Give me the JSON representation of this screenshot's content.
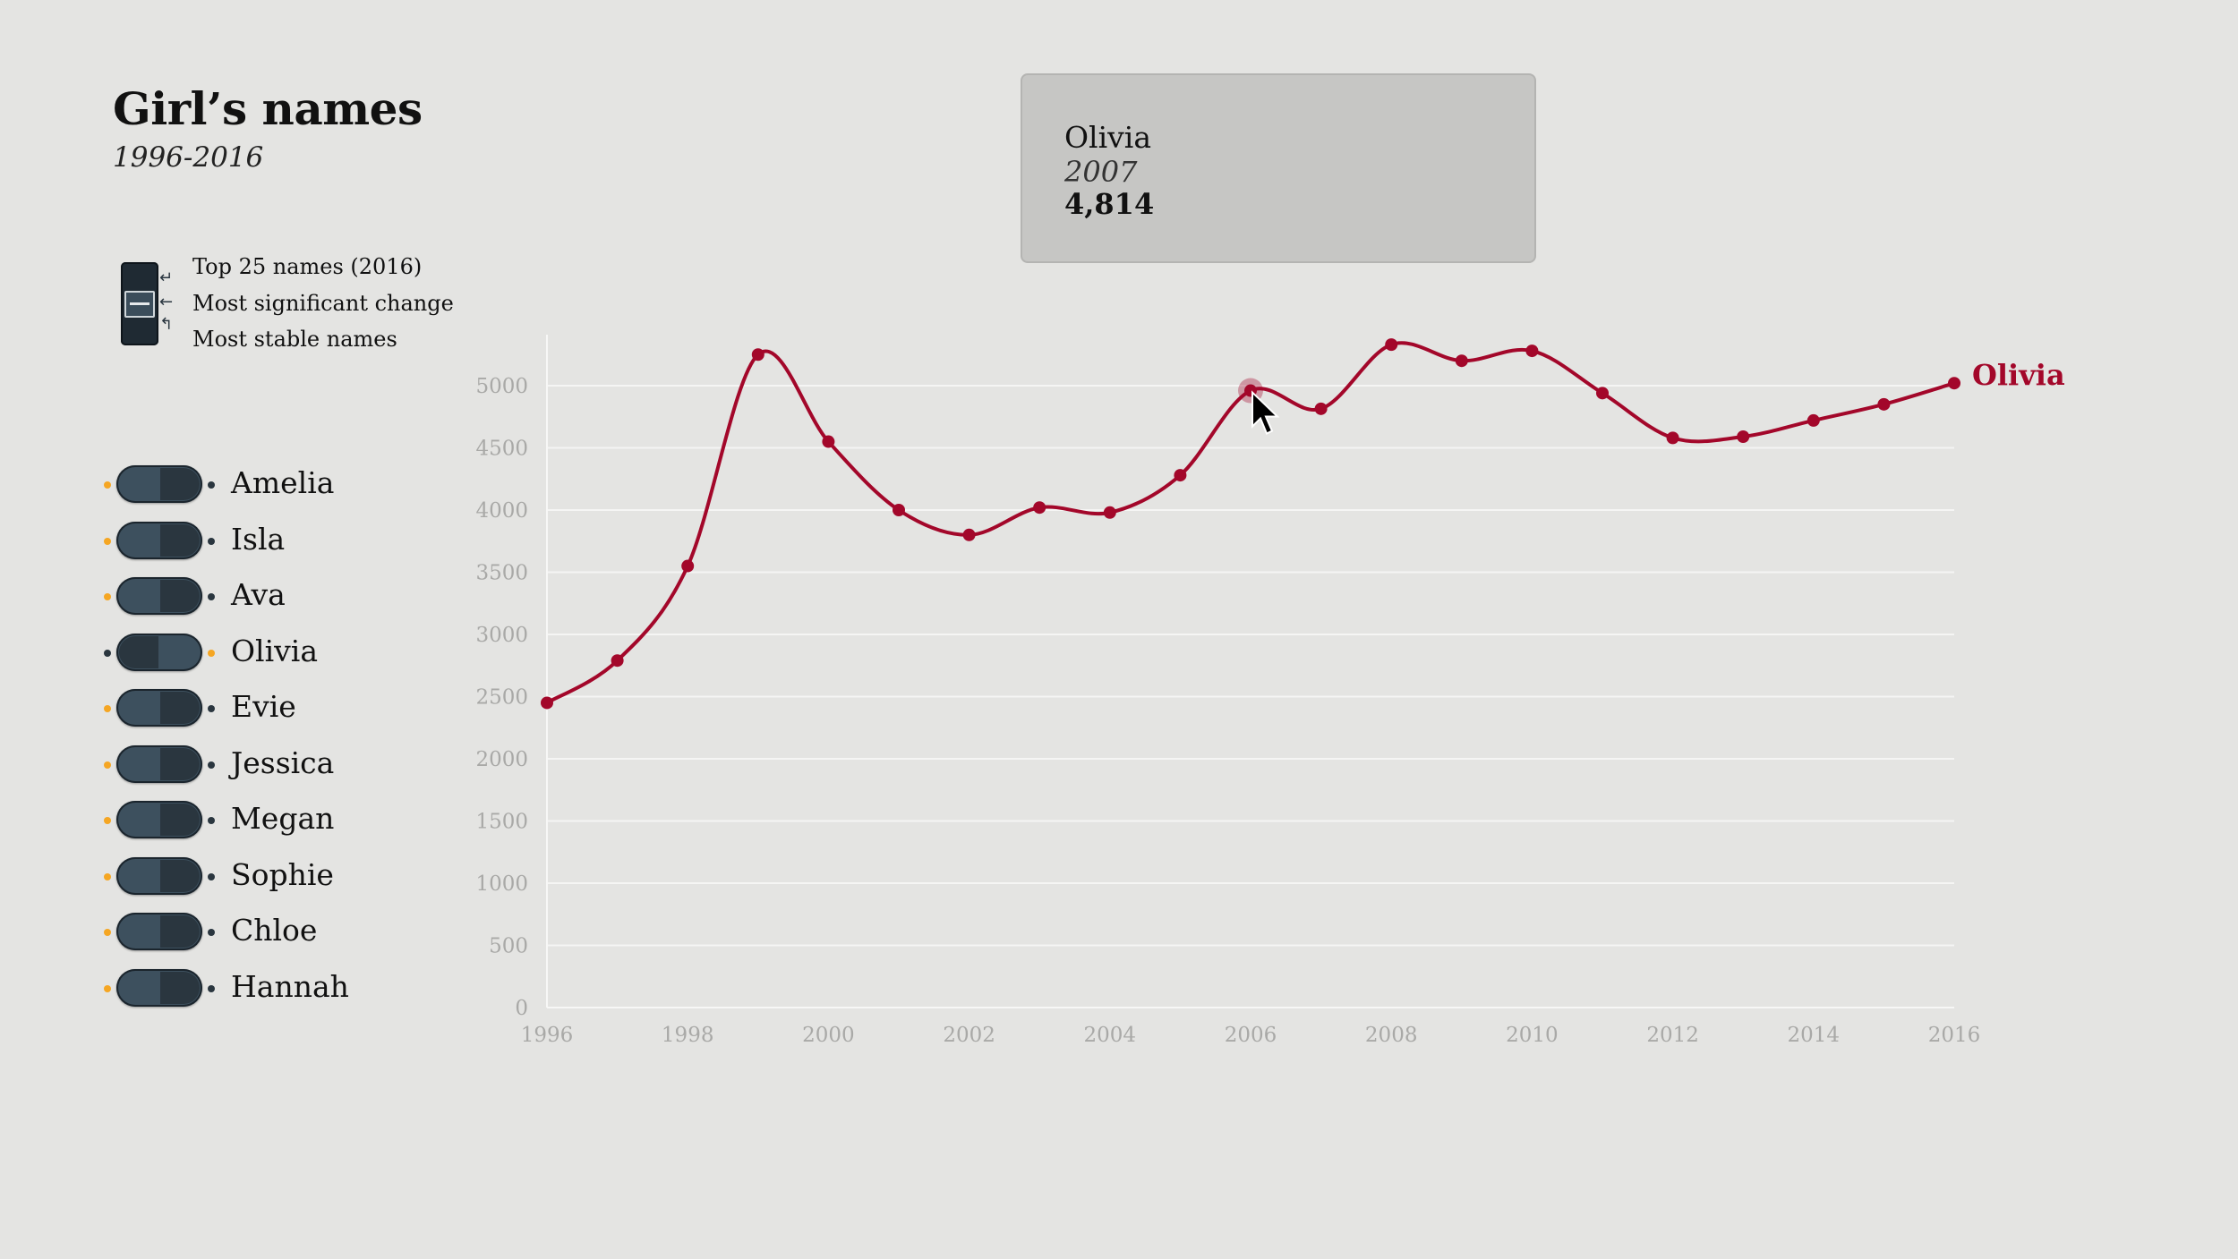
{
  "header": {
    "title": "Girl’s names",
    "subtitle": "1996-2016"
  },
  "mode_selector": {
    "items": [
      "Top 25 names (2016)",
      "Most significant change",
      "Most stable names"
    ],
    "selected": "Most significant change"
  },
  "names": [
    {
      "label": "Amelia",
      "active": false
    },
    {
      "label": "Isla",
      "active": false
    },
    {
      "label": "Ava",
      "active": false
    },
    {
      "label": "Olivia",
      "active": true
    },
    {
      "label": "Evie",
      "active": false
    },
    {
      "label": "Jessica",
      "active": false
    },
    {
      "label": "Megan",
      "active": false
    },
    {
      "label": "Sophie",
      "active": false
    },
    {
      "label": "Chloe",
      "active": false
    },
    {
      "label": "Hannah",
      "active": false
    }
  ],
  "colors": {
    "line": "#a3072a",
    "dot_active": "#f5a623",
    "dot_inactive": "#2a363f",
    "grid": "#f5f5f4",
    "tick": "#a9a9a7"
  },
  "tooltip": {
    "name": "Olivia",
    "year": "2007",
    "value": "4,814"
  },
  "chart_data": {
    "type": "line",
    "x": [
      1996,
      1997,
      1998,
      1999,
      2000,
      2001,
      2002,
      2003,
      2004,
      2005,
      2006,
      2007,
      2008,
      2009,
      2010,
      2011,
      2012,
      2013,
      2014,
      2015,
      2016
    ],
    "series": [
      {
        "name": "Olivia",
        "values": [
          2450,
          2790,
          3550,
          5250,
          4550,
          4000,
          3800,
          4020,
          3980,
          4280,
          4960,
          4814,
          5330,
          5200,
          5280,
          4940,
          4580,
          4590,
          4720,
          4850,
          5020
        ]
      }
    ],
    "xticks": [
      "1996",
      "1998",
      "2000",
      "2002",
      "2004",
      "2006",
      "2008",
      "2010",
      "2012",
      "2014",
      "2016"
    ],
    "yticks": [
      "0",
      "500",
      "1000",
      "1500",
      "2000",
      "2500",
      "3000",
      "3500",
      "4000",
      "4500",
      "5000"
    ],
    "xlim": [
      1996,
      2016
    ],
    "ylim": [
      0,
      5400
    ],
    "grid": true,
    "highlight": {
      "x": 2006,
      "y": 4960
    }
  }
}
